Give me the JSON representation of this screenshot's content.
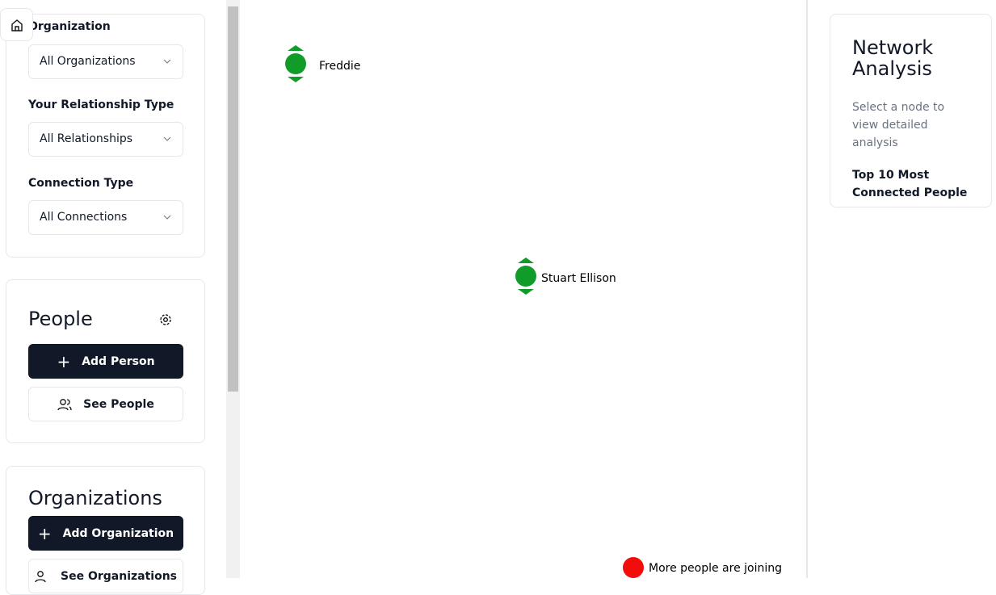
{
  "filters": [
    {
      "label": "Organization",
      "value": "All Organizations"
    },
    {
      "label": "Your Relationship Type",
      "value": "All Relationships"
    },
    {
      "label": "Connection Type",
      "value": "All Connections"
    }
  ],
  "people": {
    "title": "People",
    "add": "Add Person",
    "see": "See People"
  },
  "organizations": {
    "title": "Organizations",
    "add": "Add Organization",
    "see": "See Organizations"
  },
  "graph": {
    "nodes": [
      {
        "label": "Freddie"
      },
      {
        "label": "Stuart Ellison"
      },
      {
        "label": "More people are joining"
      }
    ]
  },
  "analysis": {
    "title": "Network Analysis",
    "hint": "Select a node to view detailed analysis",
    "top": "Top 10 Most Connected People"
  }
}
